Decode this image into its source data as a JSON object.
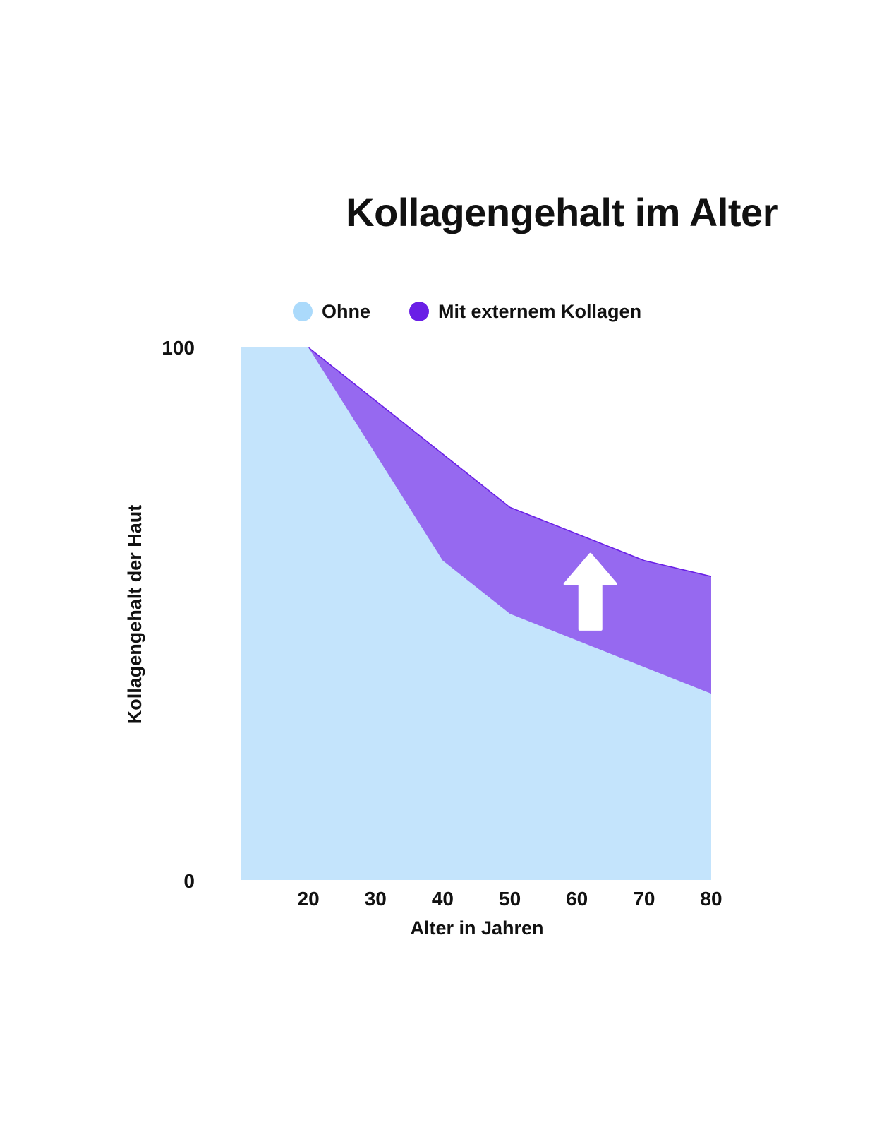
{
  "chart_data": {
    "type": "area",
    "title": "Kollagengehalt im Alter",
    "xlabel": "Alter in Jahren",
    "ylabel": "Kollagengehalt der Haut",
    "x_tick_labels": [
      "20",
      "30",
      "40",
      "50",
      "60",
      "70",
      "80"
    ],
    "y_tick_labels": [
      "0",
      "100"
    ],
    "xlim": [
      10,
      80
    ],
    "ylim": [
      0,
      100
    ],
    "grid": false,
    "legend_position": "top",
    "series": [
      {
        "name": "Ohne",
        "color": "#c4e4fc",
        "legend_color": "#abdafb",
        "x": [
          10,
          20,
          40,
          50,
          80
        ],
        "values": [
          100,
          100,
          60,
          50,
          35
        ]
      },
      {
        "name": "Mit externem Kollagen",
        "color": "#9669f0",
        "legend_color": "#6a1fe6",
        "x": [
          10,
          20,
          40,
          50,
          70,
          80
        ],
        "values": [
          100,
          100,
          80,
          70,
          60,
          57
        ]
      }
    ],
    "annotations": [
      {
        "type": "arrow-up-icon",
        "x": 62,
        "color": "#ffffff"
      }
    ]
  }
}
